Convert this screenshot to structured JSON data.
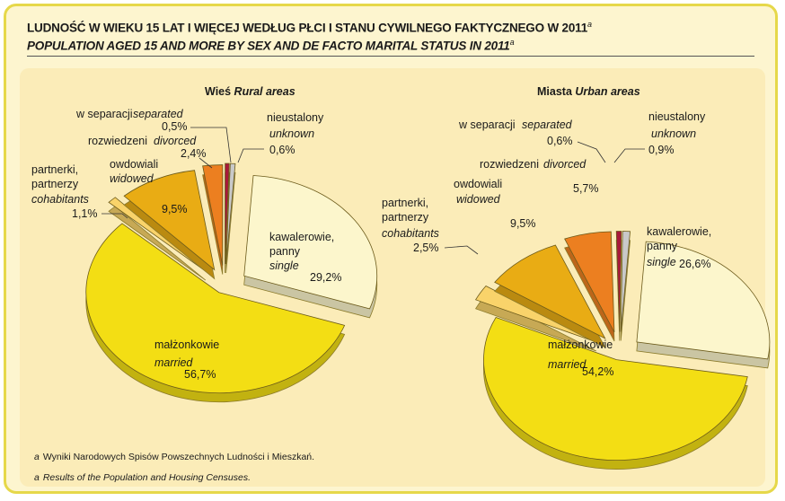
{
  "title_pl": "LUDNOŚĆ W WIEKU 15 LAT I WIĘCEJ WEDŁUG PŁCI I STANU CYWILNEGO FAKTYCZNEGO W 2011",
  "title_en": "POPULATION AGED 15 AND MORE BY SEX AND DE FACTO MARITAL STATUS IN 2011",
  "title_sup": "a",
  "footnotes": [
    {
      "mark": "a",
      "text": "Wyniki Narodowych Spisów Powszechnych Ludności i Mieszkań."
    },
    {
      "mark": "a",
      "text": "Results of the Population and Housing Censuses."
    }
  ],
  "chart_data": [
    {
      "type": "pie",
      "title_pl": "Wieś",
      "title_en": "Rural areas",
      "slices": [
        {
          "key": "single",
          "label_pl": "kawalerowie, panny",
          "label_en": "single",
          "value": 29.2,
          "value_label": "29,2%",
          "color": "#fcf6cc"
        },
        {
          "key": "married",
          "label_pl": "małżonkowie",
          "label_en": "married",
          "value": 56.7,
          "value_label": "56,7%",
          "color": "#f3de14"
        },
        {
          "key": "cohabitants",
          "label_pl": "partnerki, partnerzy",
          "label_en": "cohabitants",
          "value": 1.1,
          "value_label": "1,1%",
          "color": "#f9d36a"
        },
        {
          "key": "widowed",
          "label_pl": "owdowiali",
          "label_en": "widowed",
          "value": 9.5,
          "value_label": "9,5%",
          "color": "#e9ac14"
        },
        {
          "key": "divorced",
          "label_pl": "rozwiedzeni",
          "label_en": "divorced",
          "value": 2.4,
          "value_label": "2,4%",
          "color": "#ec7f20"
        },
        {
          "key": "separated",
          "label_pl": "w separacji",
          "label_en": "separated",
          "value": 0.5,
          "value_label": "0,5%",
          "color": "#a8193b"
        },
        {
          "key": "unknown",
          "label_pl": "nieustalony",
          "label_en": "unknown",
          "value": 0.6,
          "value_label": "0,6%",
          "color": "#c9c9c9"
        }
      ]
    },
    {
      "type": "pie",
      "title_pl": "Miasta",
      "title_en": "Urban areas",
      "slices": [
        {
          "key": "single",
          "label_pl": "kawalerowie, panny",
          "label_en": "single",
          "value": 26.6,
          "value_label": "26,6%",
          "color": "#fcf6cc"
        },
        {
          "key": "married",
          "label_pl": "małżonkowie",
          "label_en": "married",
          "value": 54.2,
          "value_label": "54,2%",
          "color": "#f3de14"
        },
        {
          "key": "cohabitants",
          "label_pl": "partnerki, partnerzy",
          "label_en": "cohabitants",
          "value": 2.5,
          "value_label": "2,5%",
          "color": "#f9d36a"
        },
        {
          "key": "widowed",
          "label_pl": "owdowiali",
          "label_en": "widowed",
          "value": 9.5,
          "value_label": "9,5%",
          "color": "#e9ac14"
        },
        {
          "key": "divorced",
          "label_pl": "rozwiedzeni",
          "label_en": "divorced",
          "value": 5.7,
          "value_label": "5,7%",
          "color": "#ec7f20"
        },
        {
          "key": "separated",
          "label_pl": "w separacji",
          "label_en": "separated",
          "value": 0.6,
          "value_label": "0,6%",
          "color": "#a8193b"
        },
        {
          "key": "unknown",
          "label_pl": "nieustalony",
          "label_en": "unknown",
          "value": 0.9,
          "value_label": "0,9%",
          "color": "#c9c9c9"
        }
      ]
    }
  ]
}
